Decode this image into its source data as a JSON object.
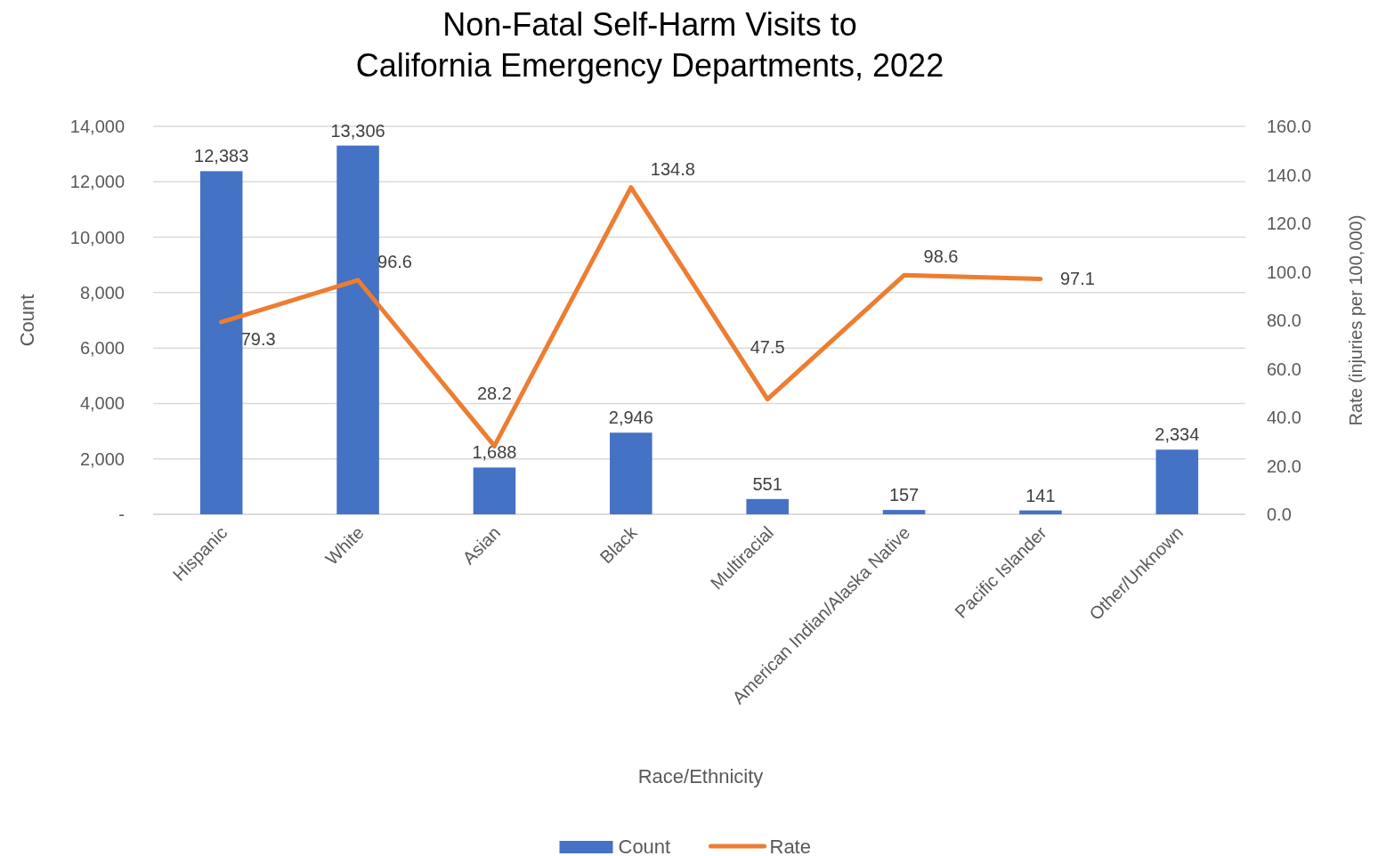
{
  "chart_data": {
    "type": "bar",
    "title": "Non-Fatal Self-Harm Visits to\nCalifornia Emergency Departments, 2022",
    "xlabel": "Race/Ethnicity",
    "ylabel": "Count",
    "y2label": "Rate  (injuries per 100,000)",
    "categories": [
      "Hispanic",
      "White",
      "Asian",
      "Black",
      "Multiracial",
      "American Indian/Alaska Native",
      "Pacific Islander",
      "Other/Unknown"
    ],
    "series": [
      {
        "name": "Count",
        "color": "#4472c4",
        "values": [
          12383,
          13306,
          1688,
          2946,
          551,
          157,
          141,
          2334
        ],
        "value_labels": [
          "12,383",
          "13,306",
          "1,688",
          "2,946",
          "551",
          "157",
          "141",
          "2,334"
        ]
      },
      {
        "name": "Rate",
        "type": "line",
        "axis": "y2",
        "color": "#ed7d31",
        "values": [
          79.3,
          96.6,
          28.2,
          134.8,
          47.5,
          98.6,
          97.1,
          null
        ],
        "value_labels": [
          "79.3",
          "96.6",
          "28.2",
          "134.8",
          "47.5",
          "98.6",
          "97.1",
          null
        ]
      }
    ],
    "ylim": [
      0,
      14000
    ],
    "yticks": [
      {
        "value": 0,
        "label": "-"
      },
      {
        "value": 2000,
        "label": "2,000"
      },
      {
        "value": 4000,
        "label": "4,000"
      },
      {
        "value": 6000,
        "label": "6,000"
      },
      {
        "value": 8000,
        "label": "8,000"
      },
      {
        "value": 10000,
        "label": "10,000"
      },
      {
        "value": 12000,
        "label": "12,000"
      },
      {
        "value": 14000,
        "label": "14,000"
      }
    ],
    "y2lim": [
      0,
      160
    ],
    "y2ticks": [
      {
        "value": 0,
        "label": "0.0"
      },
      {
        "value": 20,
        "label": "20.0"
      },
      {
        "value": 40,
        "label": "40.0"
      },
      {
        "value": 60,
        "label": "60.0"
      },
      {
        "value": 80,
        "label": "80.0"
      },
      {
        "value": 100,
        "label": "100.0"
      },
      {
        "value": 120,
        "label": "120.0"
      },
      {
        "value": 140,
        "label": "140.0"
      },
      {
        "value": 160,
        "label": "160.0"
      }
    ],
    "grid": "y",
    "legend": "bottom",
    "marker": "none"
  }
}
